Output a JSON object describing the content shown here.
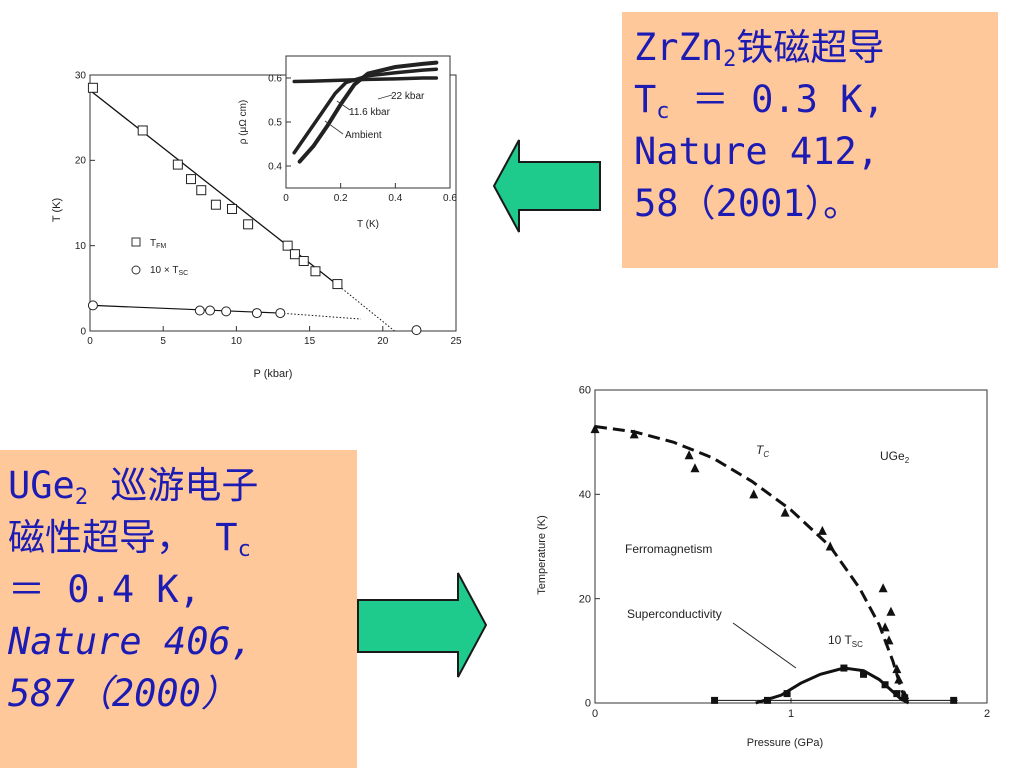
{
  "box1": {
    "line1": "ZrZn",
    "line1_sub": "2",
    "line1_rest": "铁磁超导",
    "line2": "T",
    "line2_sub": "c",
    "line2_rest": " ＝ 0.3 K,",
    "line3": "Nature 412,",
    "line4": "58（2001）。"
  },
  "box2": {
    "line1": "UGe",
    "line1_sub": "2",
    "line1_rest": " 巡游电子",
    "line2": "磁性超导， T",
    "line2_sub": "c",
    "line3": "＝ 0.4 K,",
    "line4": "Nature 406,",
    "line5": "587（2000）"
  },
  "arrows": {
    "color": "#1ecb8c"
  },
  "chart_data": [
    {
      "type": "scatter",
      "xlabel": "P (kbar)",
      "ylabel": "T (K)",
      "xlim": [
        0,
        25
      ],
      "ylim": [
        0,
        30
      ],
      "xticks": [
        "0",
        "5",
        "10",
        "15",
        "20",
        "25"
      ],
      "yticks": [
        "0",
        "10",
        "20",
        "30"
      ],
      "legend": {
        "fm": "T",
        "fm_sub": "FM",
        "sc": "10 × T",
        "sc_sub": "SC"
      },
      "series": [
        {
          "name": "T_FM",
          "marker": "square",
          "x": [
            0.2,
            3.6,
            6.0,
            6.9,
            7.6,
            8.6,
            9.7,
            10.8,
            13.5,
            14.0,
            14.6,
            15.4,
            16.9
          ],
          "y": [
            28.5,
            23.5,
            19.5,
            17.8,
            16.5,
            14.8,
            14.3,
            12.5,
            10.0,
            9.0,
            8.2,
            7.0,
            5.5
          ]
        },
        {
          "name": "10 × T_SC",
          "marker": "circle",
          "x": [
            0.2,
            7.5,
            8.2,
            9.3,
            11.4,
            13.0,
            22.3
          ],
          "y": [
            3.0,
            2.4,
            2.4,
            2.3,
            2.1,
            2.1,
            0.1
          ]
        }
      ],
      "inset": {
        "xlabel": "T (K)",
        "ylabel": "ρ (μΩ cm)",
        "xlim": [
          0,
          0.6
        ],
        "ylim": [
          0.35,
          0.65
        ],
        "xticks": [
          "0",
          "0.2",
          "0.4",
          "0.6"
        ],
        "yticks": [
          "0.4",
          "0.5",
          "0.6"
        ],
        "curve_labels": [
          "22 kbar",
          "11.6 kbar",
          "Ambient"
        ],
        "series": [
          {
            "name": "22 kbar",
            "x": [
              0.03,
              0.1,
              0.2,
              0.3,
              0.4,
              0.5,
              0.55
            ],
            "y": [
              0.592,
              0.593,
              0.595,
              0.597,
              0.598,
              0.6,
              0.6
            ]
          },
          {
            "name": "11.6 kbar",
            "x": [
              0.03,
              0.08,
              0.13,
              0.18,
              0.22,
              0.3,
              0.4,
              0.5,
              0.55
            ],
            "y": [
              0.43,
              0.475,
              0.52,
              0.565,
              0.59,
              0.605,
              0.612,
              0.618,
              0.62
            ]
          },
          {
            "name": "Ambient",
            "x": [
              0.05,
              0.1,
              0.15,
              0.2,
              0.25,
              0.3,
              0.4,
              0.5,
              0.55
            ],
            "y": [
              0.41,
              0.445,
              0.49,
              0.54,
              0.585,
              0.61,
              0.625,
              0.632,
              0.635
            ]
          }
        ]
      }
    },
    {
      "type": "scatter",
      "xlabel": "Pressure (GPa)",
      "ylabel": "Temperature (K)",
      "xlim": [
        0,
        2
      ],
      "ylim": [
        0,
        60
      ],
      "xticks": [
        "0",
        "1",
        "2"
      ],
      "yticks": [
        "0",
        "20",
        "40",
        "60"
      ],
      "annotations": {
        "tc": "T",
        "tc_sub": "C",
        "ugeb": "UGe",
        "ugeb_sub": "2",
        "ferro": "Ferromagnetism",
        "super": "Superconductivity",
        "tsc": "10 T",
        "tsc_sub": "SC"
      },
      "series": [
        {
          "name": "T_C",
          "marker": "triangle",
          "x": [
            0.0,
            0.2,
            0.48,
            0.51,
            0.81,
            0.97,
            1.16,
            1.2,
            1.47,
            1.51,
            1.48,
            1.5,
            1.54,
            1.55,
            1.58
          ],
          "y": [
            52.5,
            51.5,
            47.5,
            45,
            40,
            36.5,
            33,
            30,
            22,
            17.5,
            14.5,
            12,
            6.5,
            4.5,
            1.5
          ]
        },
        {
          "name": "10 T_SC",
          "marker": "square",
          "x": [
            0.61,
            0.88,
            0.98,
            1.27,
            1.37,
            1.48,
            1.54,
            1.58,
            1.83
          ],
          "y": [
            0.5,
            0.5,
            1.8,
            6.7,
            5.5,
            3.5,
            1.8,
            1.0,
            0.5
          ]
        }
      ]
    }
  ]
}
